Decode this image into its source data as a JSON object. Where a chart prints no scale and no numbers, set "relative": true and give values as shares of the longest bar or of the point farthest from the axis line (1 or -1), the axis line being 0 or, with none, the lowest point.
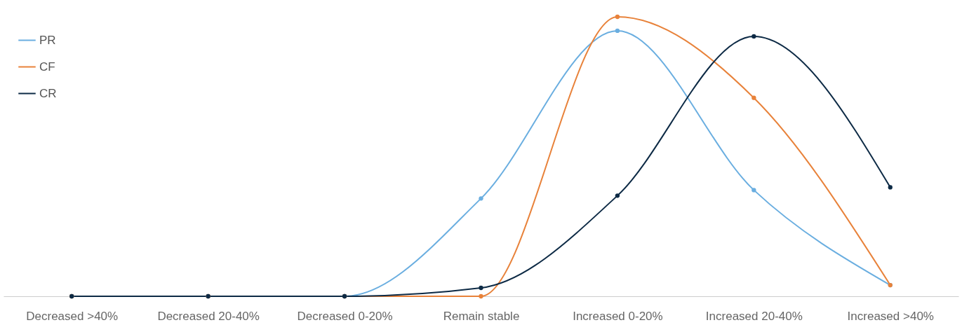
{
  "chart_data": {
    "type": "line",
    "relative": true,
    "categories": [
      "Decreased >40%",
      "Decreased 20-40%",
      "Decreased 0-20%",
      "Remain stable",
      "Increased 0-20%",
      "Increased 20-40%",
      "Increased >40%"
    ],
    "series": [
      {
        "name": "PR",
        "color": "#6aaee0",
        "values": [
          0,
          0,
          0,
          0.35,
          0.95,
          0.38,
          0.04
        ]
      },
      {
        "name": "CF",
        "color": "#e8823a",
        "values": [
          0,
          0,
          0,
          0,
          1,
          0.71,
          0.04
        ]
      },
      {
        "name": "CR",
        "color": "#0d2a45",
        "values": [
          0,
          0,
          0,
          0.03,
          0.36,
          0.93,
          0.39
        ]
      }
    ],
    "marker": "circle",
    "legend": "top left",
    "grid": false
  }
}
